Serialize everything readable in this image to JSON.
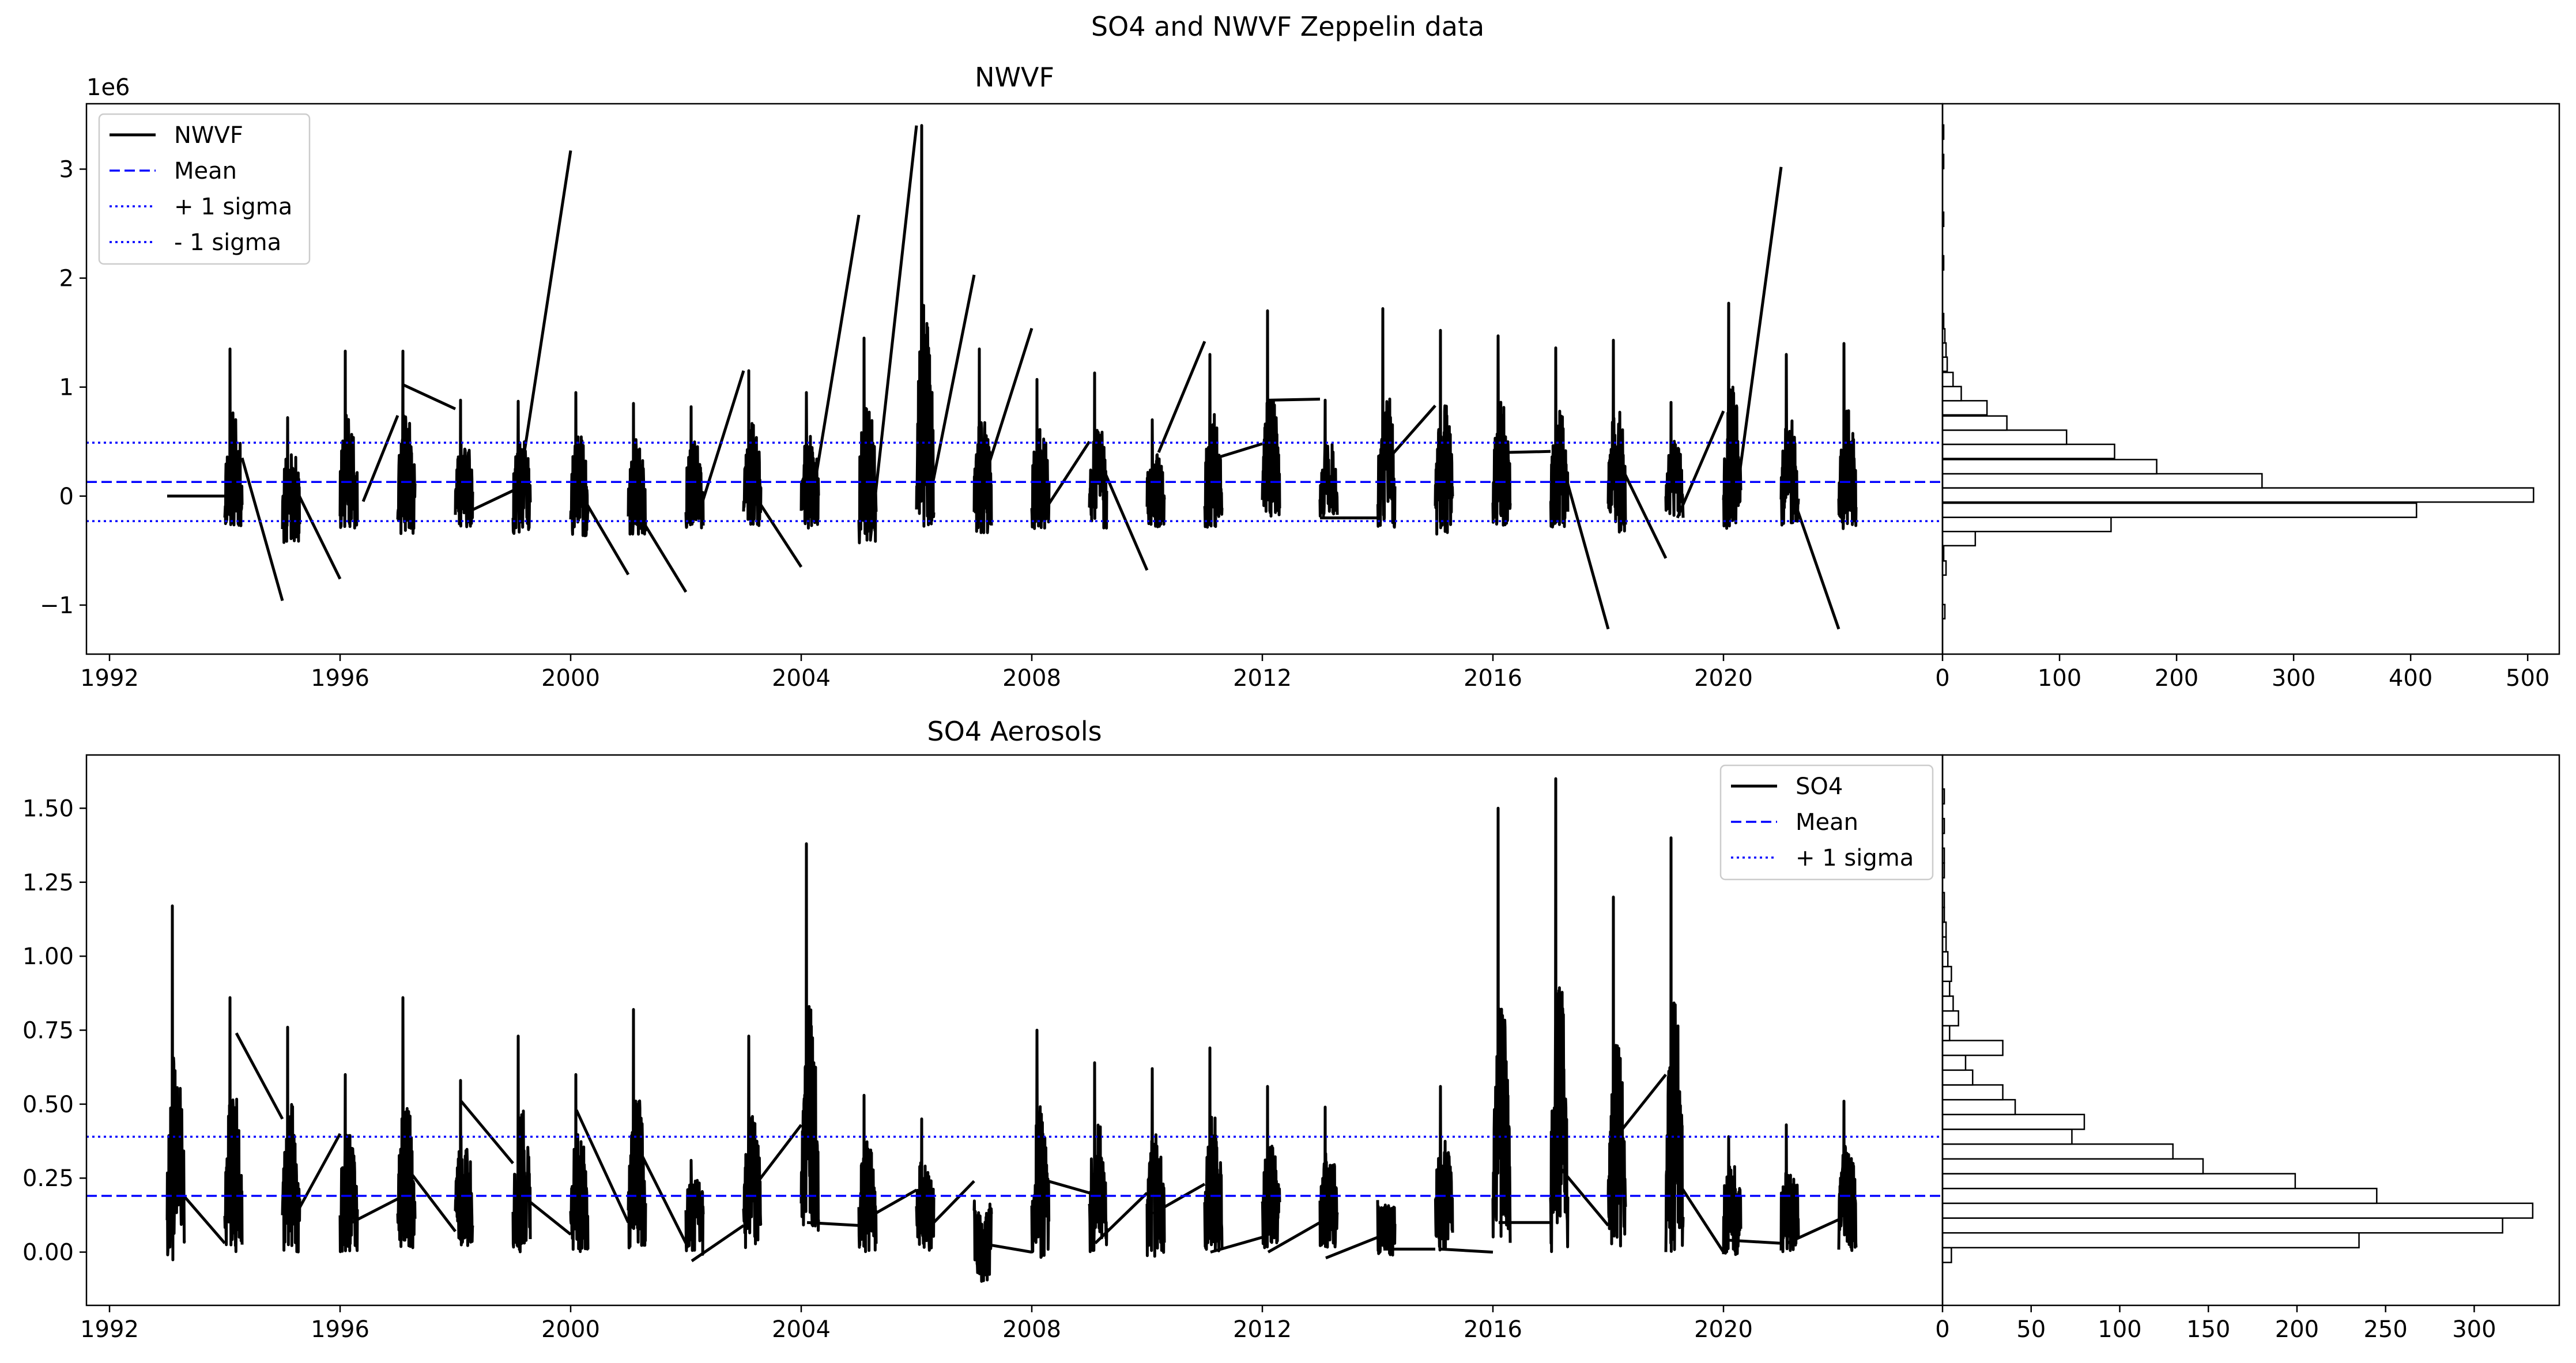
{
  "figure": {
    "suptitle": "SO4 and NWVF Zeppelin data"
  },
  "chart_data": [
    {
      "type": "line",
      "title": "NWVF",
      "xlabel": "",
      "ylabel": "",
      "y_offset_label": "1e6",
      "x_ticks": [
        "1992",
        "1996",
        "2000",
        "2004",
        "2008",
        "2012",
        "2016",
        "2020"
      ],
      "y_ticks": [
        "−1",
        "0",
        "1",
        "2",
        "3"
      ],
      "xlim": [
        1991.6,
        2023.8
      ],
      "ylim": [
        -1.45,
        3.6
      ],
      "legend": {
        "placement": "upper-left",
        "entries": [
          "NWVF",
          "Mean",
          "+ 1 sigma",
          "- 1 sigma"
        ]
      },
      "grid": false,
      "mean": 0.13,
      "plus_1_sigma": 0.49,
      "minus_1_sigma": -0.23,
      "series": [
        {
          "name": "NWVF",
          "color": "#000000",
          "style": "solid",
          "season_starts": [
            1994.0,
            1995.0,
            1996.0,
            1997.0,
            1998.0,
            1999.0,
            2000.0,
            2001.0,
            2002.0,
            2003.0,
            2004.0,
            2005.0,
            2006.0,
            2007.0,
            2008.0,
            2009.0,
            2010.0,
            2011.0,
            2012.0,
            2013.0,
            2014.0,
            2015.0,
            2016.0,
            2017.0,
            2018.0,
            2019.0,
            2020.0,
            2021.0,
            2022.0
          ],
          "season_peaks": [
            1.35,
            0.72,
            1.33,
            1.33,
            0.88,
            0.87,
            0.95,
            0.85,
            0.82,
            1.15,
            0.95,
            1.45,
            3.4,
            1.35,
            1.07,
            1.13,
            0.7,
            1.3,
            1.7,
            0.88,
            1.72,
            1.52,
            1.47,
            1.36,
            1.43,
            0.86,
            1.77,
            1.3,
            1.4
          ],
          "season_troughs": [
            -0.3,
            -0.45,
            -0.3,
            -0.35,
            -0.3,
            -0.35,
            -0.38,
            -0.35,
            -0.3,
            -0.3,
            -0.3,
            -0.45,
            -0.3,
            -0.35,
            -0.3,
            -0.3,
            -0.3,
            -0.3,
            -0.2,
            -0.2,
            -0.3,
            -0.35,
            -0.3,
            -0.3,
            -0.35,
            -0.2,
            -0.3,
            -0.3,
            -0.3
          ],
          "connectors": [
            [
              [
                1993.0,
                0.0
              ],
              [
                1994.0,
                0.0
              ]
            ],
            [
              [
                1994.3,
                0.35
              ],
              [
                1995.0,
                -0.96
              ]
            ],
            [
              [
                1995.2,
                0.1
              ],
              [
                1996.0,
                -0.76
              ]
            ],
            [
              [
                1996.4,
                -0.05
              ],
              [
                1997.0,
                0.74
              ]
            ],
            [
              [
                1997.1,
                1.02
              ],
              [
                1998.0,
                0.8
              ]
            ],
            [
              [
                1998.2,
                -0.15
              ],
              [
                1999.0,
                0.05
              ]
            ],
            [
              [
                1999.1,
                0.07
              ],
              [
                2000.0,
                3.17
              ]
            ],
            [
              [
                2000.2,
                0.0
              ],
              [
                2001.0,
                -0.72
              ]
            ],
            [
              [
                2001.1,
                -0.1
              ],
              [
                2002.0,
                -0.88
              ]
            ],
            [
              [
                2002.2,
                -0.2
              ],
              [
                2003.0,
                1.15
              ]
            ],
            [
              [
                2003.2,
                0.0
              ],
              [
                2004.0,
                -0.65
              ]
            ],
            [
              [
                2004.2,
                0.0
              ],
              [
                2005.0,
                2.58
              ]
            ],
            [
              [
                2005.2,
                -0.4
              ],
              [
                2006.0,
                3.4
              ]
            ],
            [
              [
                2006.2,
                -0.1
              ],
              [
                2007.0,
                2.03
              ]
            ],
            [
              [
                2007.2,
                0.2
              ],
              [
                2008.0,
                1.54
              ]
            ],
            [
              [
                2008.2,
                -0.15
              ],
              [
                2009.0,
                0.5
              ]
            ],
            [
              [
                2009.2,
                0.3
              ],
              [
                2010.0,
                -0.68
              ]
            ],
            [
              [
                2010.2,
                0.4
              ],
              [
                2011.0,
                1.42
              ]
            ],
            [
              [
                2011.2,
                0.35
              ],
              [
                2012.0,
                0.48
              ]
            ],
            [
              [
                2012.1,
                0.88
              ],
              [
                2013.0,
                0.89
              ]
            ],
            [
              [
                2013.0,
                -0.2
              ],
              [
                2014.0,
                -0.2
              ]
            ],
            [
              [
                2014.2,
                0.35
              ],
              [
                2015.0,
                0.83
              ]
            ],
            [
              [
                2016.2,
                0.4
              ],
              [
                2017.0,
                0.41
              ]
            ],
            [
              [
                2017.2,
                0.3
              ],
              [
                2018.0,
                -1.22
              ]
            ],
            [
              [
                2018.2,
                0.3
              ],
              [
                2019.0,
                -0.57
              ]
            ],
            [
              [
                2019.2,
                -0.2
              ],
              [
                2020.0,
                0.78
              ]
            ],
            [
              [
                2020.2,
                -0.1
              ],
              [
                2021.0,
                3.02
              ]
            ],
            [
              [
                2021.2,
                0.0
              ],
              [
                2022.0,
                -1.22
              ]
            ]
          ]
        },
        {
          "name": "Mean",
          "color": "#0000ff",
          "style": "dashed"
        },
        {
          "name": "+ 1 sigma",
          "color": "#0000ff",
          "style": "dotted"
        },
        {
          "name": "- 1 sigma",
          "color": "#0000ff",
          "style": "dotted"
        }
      ],
      "histogram": {
        "orientation": "horizontal",
        "x_ticks": [
          "0",
          "100",
          "200",
          "300",
          "400",
          "500"
        ],
        "xlim": [
          0,
          527
        ],
        "bin_centers": [
          -1.06,
          -0.93,
          -0.79,
          -0.66,
          -0.53,
          -0.39,
          -0.26,
          -0.13,
          0.01,
          0.14,
          0.27,
          0.41,
          0.54,
          0.67,
          0.81,
          0.94,
          1.07,
          1.21,
          1.34,
          1.47,
          1.61,
          1.74,
          1.87,
          2.01,
          2.14,
          2.27,
          2.41,
          2.54,
          2.67,
          2.81,
          2.94,
          3.07,
          3.21,
          3.34
        ],
        "counts": [
          2,
          0,
          0,
          3,
          1,
          28,
          144,
          405,
          505,
          273,
          183,
          147,
          106,
          55,
          38,
          16,
          9,
          4,
          3,
          2,
          1,
          0,
          0,
          0,
          1,
          0,
          0,
          1,
          0,
          0,
          0,
          1,
          0,
          1
        ]
      }
    },
    {
      "type": "line",
      "title": "SO4 Aerosols",
      "xlabel": "",
      "ylabel": "",
      "x_ticks": [
        "1992",
        "1996",
        "2000",
        "2004",
        "2008",
        "2012",
        "2016",
        "2020"
      ],
      "y_ticks": [
        "0.00",
        "0.25",
        "0.50",
        "0.75",
        "1.00",
        "1.25",
        "1.50"
      ],
      "xlim": [
        1991.6,
        2023.8
      ],
      "ylim": [
        -0.18,
        1.68
      ],
      "legend": {
        "placement": "upper-right",
        "entries": [
          "SO4",
          "Mean",
          "+ 1 sigma"
        ]
      },
      "grid": false,
      "mean": 0.19,
      "plus_1_sigma": 0.39,
      "series": [
        {
          "name": "SO4",
          "color": "#000000",
          "style": "solid",
          "season_starts": [
            1993.0,
            1994.0,
            1995.0,
            1996.0,
            1997.0,
            1998.0,
            1999.0,
            2000.0,
            2001.0,
            2002.0,
            2003.0,
            2004.0,
            2005.0,
            2006.0,
            2007.0,
            2008.0,
            2009.0,
            2010.0,
            2011.0,
            2012.0,
            2013.0,
            2014.0,
            2015.0,
            2016.0,
            2017.0,
            2018.0,
            2019.0,
            2020.0,
            2021.0,
            2022.0
          ],
          "season_peaks": [
            1.17,
            0.86,
            0.76,
            0.6,
            0.86,
            0.58,
            0.73,
            0.6,
            0.82,
            0.31,
            0.73,
            1.38,
            0.53,
            0.45,
            0.11,
            0.75,
            0.64,
            0.62,
            0.69,
            0.56,
            0.49,
            0.14,
            0.56,
            1.5,
            1.6,
            1.2,
            1.4,
            0.39,
            0.43,
            0.51
          ],
          "season_troughs": [
            -0.03,
            0.0,
            0.0,
            -0.01,
            0.0,
            0.02,
            0.0,
            0.0,
            0.0,
            -0.01,
            0.0,
            0.07,
            0.0,
            0.0,
            -0.1,
            -0.02,
            0.0,
            -0.02,
            0.0,
            0.0,
            0.0,
            -0.01,
            0.0,
            0.0,
            0.0,
            0.0,
            0.0,
            -0.01,
            0.0,
            0.0
          ],
          "connectors": [
            [
              [
                1993.2,
                0.21
              ],
              [
                1994.0,
                0.03
              ]
            ],
            [
              [
                1994.2,
                0.74
              ],
              [
                1995.0,
                0.45
              ]
            ],
            [
              [
                1995.1,
                0.08
              ],
              [
                1996.0,
                0.4
              ]
            ],
            [
              [
                1996.1,
                0.09
              ],
              [
                1997.0,
                0.18
              ]
            ],
            [
              [
                1997.1,
                0.3
              ],
              [
                1998.0,
                0.07
              ]
            ],
            [
              [
                1998.1,
                0.51
              ],
              [
                1999.0,
                0.3
              ]
            ],
            [
              [
                1999.1,
                0.2
              ],
              [
                2000.0,
                0.06
              ]
            ],
            [
              [
                2000.1,
                0.48
              ],
              [
                2001.0,
                0.1
              ]
            ],
            [
              [
                2001.1,
                0.38
              ],
              [
                2002.0,
                0.03
              ]
            ],
            [
              [
                2002.1,
                -0.03
              ],
              [
                2003.0,
                0.09
              ]
            ],
            [
              [
                2003.1,
                0.2
              ],
              [
                2004.0,
                0.43
              ]
            ],
            [
              [
                2004.1,
                0.1
              ],
              [
                2005.0,
                0.09
              ]
            ],
            [
              [
                2005.1,
                0.11
              ],
              [
                2006.0,
                0.21
              ]
            ],
            [
              [
                2006.1,
                0.06
              ],
              [
                2007.0,
                0.24
              ]
            ],
            [
              [
                2007.1,
                0.03
              ],
              [
                2008.0,
                0.0
              ]
            ],
            [
              [
                2008.1,
                0.25
              ],
              [
                2009.0,
                0.2
              ]
            ],
            [
              [
                2009.1,
                0.03
              ],
              [
                2010.0,
                0.2
              ]
            ],
            [
              [
                2010.1,
                0.13
              ],
              [
                2011.0,
                0.23
              ]
            ],
            [
              [
                2011.1,
                0.0
              ],
              [
                2012.0,
                0.05
              ]
            ],
            [
              [
                2012.1,
                0.0
              ],
              [
                2013.0,
                0.1
              ]
            ],
            [
              [
                2013.1,
                -0.02
              ],
              [
                2014.0,
                0.05
              ]
            ],
            [
              [
                2014.1,
                0.01
              ],
              [
                2015.0,
                0.01
              ]
            ],
            [
              [
                2015.1,
                0.01
              ],
              [
                2016.0,
                0.0
              ]
            ],
            [
              [
                2016.1,
                0.1
              ],
              [
                2017.0,
                0.1
              ]
            ],
            [
              [
                2017.1,
                0.3
              ],
              [
                2018.0,
                0.09
              ]
            ],
            [
              [
                2018.1,
                0.38
              ],
              [
                2019.0,
                0.6
              ]
            ],
            [
              [
                2019.1,
                0.27
              ],
              [
                2020.0,
                0.0
              ]
            ],
            [
              [
                2020.1,
                0.04
              ],
              [
                2021.0,
                0.03
              ]
            ],
            [
              [
                2021.1,
                0.03
              ],
              [
                2022.0,
                0.11
              ]
            ]
          ]
        },
        {
          "name": "Mean",
          "color": "#0000ff",
          "style": "dashed"
        },
        {
          "name": "+ 1 sigma",
          "color": "#0000ff",
          "style": "dotted"
        }
      ],
      "histogram": {
        "orientation": "horizontal",
        "x_ticks": [
          "0",
          "50",
          "100",
          "150",
          "200",
          "250",
          "300"
        ],
        "xlim": [
          0,
          348
        ],
        "bin_centers": [
          -0.01,
          0.04,
          0.09,
          0.14,
          0.19,
          0.24,
          0.29,
          0.34,
          0.39,
          0.44,
          0.49,
          0.54,
          0.59,
          0.64,
          0.69,
          0.74,
          0.79,
          0.84,
          0.89,
          0.94,
          0.99,
          1.04,
          1.09,
          1.14,
          1.19,
          1.24,
          1.29,
          1.34,
          1.39,
          1.44,
          1.49,
          1.54
        ],
        "counts": [
          5,
          235,
          316,
          333,
          245,
          199,
          147,
          130,
          73,
          80,
          41,
          34,
          17,
          13,
          34,
          4,
          9,
          6,
          4,
          5,
          3,
          2,
          2,
          1,
          1,
          0,
          1,
          1,
          0,
          1,
          0,
          1
        ]
      }
    }
  ]
}
